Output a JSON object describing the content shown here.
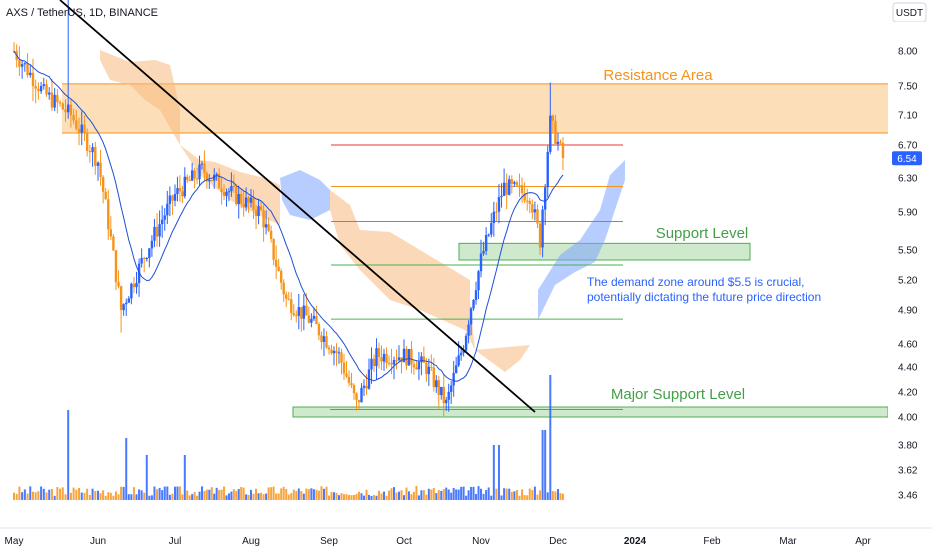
{
  "header": {
    "title": "AXS / TetherUS, 1D, BINANCE",
    "quote_unit": "USDT"
  },
  "colors": {
    "up": "#2962ff",
    "down": "#f7931a",
    "ma": "#1e4fd6",
    "cloud_bull": "#f7b97d",
    "cloud_bear": "#7ea4ff",
    "resistance_fill": "#fbd6a6",
    "resistance_line": "#f7931a",
    "resistance_text": "#f7931a",
    "support_fill": "#cfe9cc",
    "support_line": "#4caf50",
    "support_text": "#43a047",
    "trendline": "#000000",
    "note_text": "#2962ff",
    "price_badge": "#2962ff",
    "fib_red": "#e53935",
    "fib_orange": "#f7931a",
    "fib_green": "#4caf50"
  },
  "chart_data": {
    "type": "candlestick",
    "title": "AXS / TetherUS, 1D, BINANCE",
    "y_ticks": [
      "8.00",
      "7.50",
      "7.10",
      "6.70",
      "6.30",
      "5.90",
      "5.50",
      "5.20",
      "4.90",
      "4.60",
      "4.40",
      "4.20",
      "4.00",
      "3.80",
      "3.62",
      "3.46"
    ],
    "x_ticks": [
      "May",
      "Jun",
      "Jul",
      "Aug",
      "Sep",
      "Oct",
      "Nov",
      "Dec",
      "2024",
      "Feb",
      "Mar",
      "Apr"
    ],
    "x_ticks_bold": [
      "2024"
    ],
    "last_price": "6.54",
    "log_scale": true,
    "ohlc_keypoints": [
      [
        "2023-05-01",
        8.0
      ],
      [
        "2023-05-12",
        7.4
      ],
      [
        "2023-05-22",
        7.1
      ],
      [
        "2023-06-01",
        6.5
      ],
      [
        "2023-06-10",
        4.9
      ],
      [
        "2023-06-20",
        5.5
      ],
      [
        "2023-07-01",
        6.1
      ],
      [
        "2023-07-12",
        6.4
      ],
      [
        "2023-07-25",
        6.1
      ],
      [
        "2023-08-05",
        5.9
      ],
      [
        "2023-08-15",
        5.0
      ],
      [
        "2023-08-25",
        4.8
      ],
      [
        "2023-09-05",
        4.5
      ],
      [
        "2023-09-12",
        4.1
      ],
      [
        "2023-09-20",
        4.5
      ],
      [
        "2023-10-01",
        4.5
      ],
      [
        "2023-10-10",
        4.4
      ],
      [
        "2023-10-18",
        4.1
      ],
      [
        "2023-10-25",
        4.6
      ],
      [
        "2023-11-01",
        5.4
      ],
      [
        "2023-11-10",
        6.2
      ],
      [
        "2023-11-20",
        6.1
      ],
      [
        "2023-11-24",
        5.6
      ],
      [
        "2023-11-28",
        7.0
      ],
      [
        "2023-12-03",
        6.54
      ]
    ],
    "annotations": {
      "resistance": {
        "label": "Resistance Area",
        "low": 6.86,
        "high": 7.53
      },
      "support": {
        "label": "Support Level",
        "low": 5.4,
        "high": 5.57
      },
      "major_support": {
        "label": "Major Support Level",
        "low": 4.0,
        "high": 4.08
      },
      "note": "The demand zone around $5.5 is crucial,\npotentially dictating the future price direction",
      "fib_levels": [
        {
          "price": 6.7,
          "color": "red"
        },
        {
          "price": 6.2,
          "color": "orange"
        },
        {
          "price": 5.8,
          "color": "green"
        },
        {
          "price": 5.35,
          "color": "green"
        },
        {
          "price": 4.82,
          "color": "green"
        },
        {
          "price": 4.06,
          "color": "green"
        }
      ]
    }
  }
}
